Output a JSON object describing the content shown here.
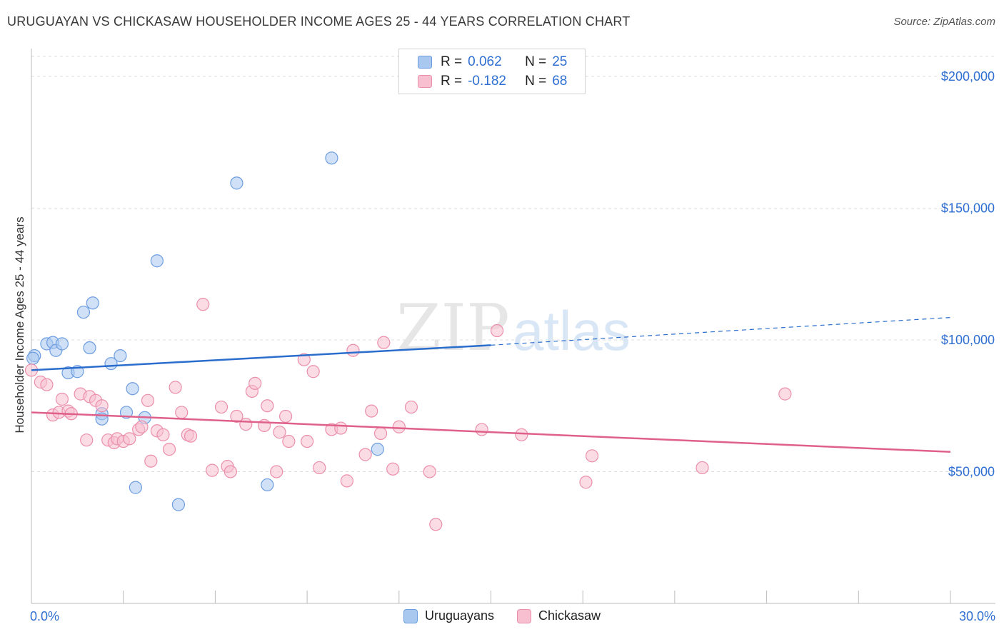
{
  "header": {
    "title": "URUGUAYAN VS CHICKASAW HOUSEHOLDER INCOME AGES 25 - 44 YEARS CORRELATION CHART",
    "source": "Source: ZipAtlas.com"
  },
  "watermark": {
    "zip": "ZIP",
    "atlas": "atlas"
  },
  "legend": {
    "rows": [
      {
        "r_label": "R =",
        "r_value": "0.062",
        "n_label": "N =",
        "n_value": "25",
        "color": "#a9c8f0",
        "border": "#6d9de0"
      },
      {
        "r_label": "R =",
        "r_value": "-0.182",
        "n_label": "N =",
        "n_value": "68",
        "color": "#f7bfd0",
        "border": "#eb8fab"
      }
    ]
  },
  "bottom_legend": {
    "uruguayans": "Uruguayans",
    "chickasaw": "Chickasaw"
  },
  "x_axis": {
    "min_label": "0.0%",
    "max_label": "30.0%"
  },
  "chart_data": {
    "type": "scatter",
    "title": "URUGUAYAN VS CHICKASAW HOUSEHOLDER INCOME AGES 25 - 44 YEARS CORRELATION CHART",
    "xlabel": "",
    "ylabel": "Householder Income Ages 25 - 44 years",
    "xlim": [
      0,
      30
    ],
    "ylim": [
      0,
      210000
    ],
    "x_unit": "%",
    "y_ticks": [
      {
        "value": 50000,
        "label": "$50,000"
      },
      {
        "value": 100000,
        "label": "$100,000"
      },
      {
        "value": 150000,
        "label": "$150,000"
      },
      {
        "value": 200000,
        "label": "$200,000"
      }
    ],
    "grid": true,
    "legend_position": "top-center",
    "series": [
      {
        "name": "Uruguayans",
        "color": "#a9c8f0",
        "stroke": "#6d9de0",
        "line_color": "#2a6dcc",
        "trend": {
          "x0": 0,
          "y0": 88500,
          "x1": 15.0,
          "y1": 98000,
          "dash_to_x": 30,
          "dash_to_y": 108500
        },
        "points": [
          [
            0.1,
            94000
          ],
          [
            0.5,
            98500
          ],
          [
            0.7,
            99000
          ],
          [
            0.8,
            96000
          ],
          [
            1.0,
            98500
          ],
          [
            1.2,
            87500
          ],
          [
            1.5,
            88000
          ],
          [
            1.7,
            110500
          ],
          [
            1.9,
            97000
          ],
          [
            2.0,
            114000
          ],
          [
            2.3,
            72000
          ],
          [
            2.3,
            70000
          ],
          [
            2.6,
            91000
          ],
          [
            2.9,
            94000
          ],
          [
            3.1,
            72500
          ],
          [
            3.3,
            81500
          ],
          [
            3.4,
            44000
          ],
          [
            3.7,
            70500
          ],
          [
            4.1,
            130000
          ],
          [
            4.8,
            37500
          ],
          [
            6.7,
            159500
          ],
          [
            7.7,
            45000
          ],
          [
            9.8,
            169000
          ],
          [
            11.3,
            58500
          ],
          [
            0.05,
            93000
          ]
        ]
      },
      {
        "name": "Chickasaw",
        "color": "#f7bfd0",
        "stroke": "#eb8fab",
        "line_color": "#e0608c",
        "trend": {
          "x0": 0,
          "y0": 72500,
          "x1": 30,
          "y1": 57500
        },
        "points": [
          [
            0.0,
            88500
          ],
          [
            0.3,
            84000
          ],
          [
            0.5,
            83000
          ],
          [
            0.7,
            71500
          ],
          [
            0.9,
            72500
          ],
          [
            1.0,
            77500
          ],
          [
            1.2,
            73000
          ],
          [
            1.3,
            72000
          ],
          [
            1.6,
            79500
          ],
          [
            1.8,
            62000
          ],
          [
            1.9,
            78500
          ],
          [
            2.1,
            77000
          ],
          [
            2.3,
            75000
          ],
          [
            2.5,
            62000
          ],
          [
            2.7,
            61000
          ],
          [
            2.8,
            62500
          ],
          [
            3.0,
            61500
          ],
          [
            3.2,
            62500
          ],
          [
            3.5,
            66000
          ],
          [
            3.6,
            67000
          ],
          [
            3.8,
            77000
          ],
          [
            3.9,
            54000
          ],
          [
            4.1,
            65500
          ],
          [
            4.3,
            64000
          ],
          [
            4.5,
            58500
          ],
          [
            4.7,
            82000
          ],
          [
            4.9,
            72500
          ],
          [
            5.1,
            64000
          ],
          [
            5.2,
            63500
          ],
          [
            5.6,
            113500
          ],
          [
            5.9,
            50500
          ],
          [
            6.2,
            74500
          ],
          [
            6.4,
            52000
          ],
          [
            6.5,
            50000
          ],
          [
            6.7,
            71000
          ],
          [
            7.0,
            68000
          ],
          [
            7.2,
            80500
          ],
          [
            7.3,
            83500
          ],
          [
            7.6,
            67500
          ],
          [
            7.7,
            75000
          ],
          [
            8.0,
            50000
          ],
          [
            8.1,
            65000
          ],
          [
            8.3,
            71000
          ],
          [
            8.4,
            61500
          ],
          [
            8.9,
            92500
          ],
          [
            9.0,
            61500
          ],
          [
            9.2,
            88000
          ],
          [
            9.4,
            51500
          ],
          [
            9.8,
            66000
          ],
          [
            10.1,
            66500
          ],
          [
            10.3,
            46500
          ],
          [
            10.5,
            96000
          ],
          [
            10.9,
            56500
          ],
          [
            11.1,
            73000
          ],
          [
            11.4,
            64500
          ],
          [
            11.5,
            99000
          ],
          [
            11.8,
            51000
          ],
          [
            12.0,
            67000
          ],
          [
            12.4,
            74500
          ],
          [
            13.0,
            50000
          ],
          [
            13.2,
            30000
          ],
          [
            14.7,
            66000
          ],
          [
            15.2,
            103500
          ],
          [
            16.0,
            64000
          ],
          [
            18.1,
            46000
          ],
          [
            18.3,
            56000
          ],
          [
            21.9,
            51500
          ],
          [
            24.6,
            79500
          ]
        ]
      }
    ]
  }
}
